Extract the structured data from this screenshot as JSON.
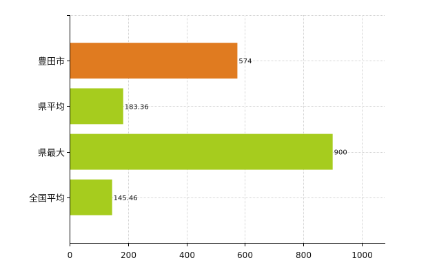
{
  "chart_data": {
    "type": "bar",
    "orientation": "horizontal",
    "categories": [
      "豊田市",
      "県平均",
      "県最大",
      "全国平均"
    ],
    "values": [
      574,
      183.36,
      900,
      145.46
    ],
    "value_labels": [
      "574",
      "183.36",
      "900",
      "145.46"
    ],
    "bar_colors": [
      "#E07B20",
      "#A6CC1E",
      "#A6CC1E",
      "#A6CC1E"
    ],
    "xlim": [
      0,
      1080
    ],
    "xticks": [
      0,
      200,
      400,
      600,
      800,
      1000
    ],
    "xtick_labels": [
      "0",
      "200",
      "400",
      "600",
      "800",
      "1000"
    ],
    "grid": true,
    "legend": "none"
  }
}
